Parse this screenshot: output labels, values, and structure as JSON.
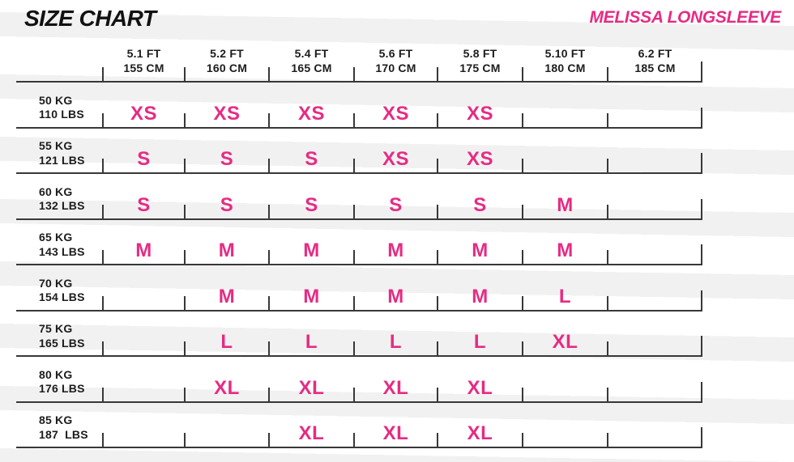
{
  "header": {
    "title": "SIZE CHART",
    "product": "MELISSA LONGSLEEVE"
  },
  "colors": {
    "accent_pink": "#e62b83",
    "line": "#383838",
    "stripe": "#f1f1f1",
    "text": "#1c1c1c"
  },
  "chart_data": {
    "type": "table",
    "title": "SIZE CHART",
    "subtitle": "MELISSA LONGSLEEVE",
    "legend_position": "none",
    "grid": "ruler-style row lines with column ticks",
    "columns": [
      {
        "ft": "5.1 FT",
        "cm": "155 CM"
      },
      {
        "ft": "5.2 FT",
        "cm": "160 CM"
      },
      {
        "ft": "5.4 FT",
        "cm": "165 CM"
      },
      {
        "ft": "5.6 FT",
        "cm": "170 CM"
      },
      {
        "ft": "5.8 FT",
        "cm": "175 CM"
      },
      {
        "ft": "5.10 FT",
        "cm": "180 CM"
      },
      {
        "ft": "6.2 FT",
        "cm": "185 CM"
      }
    ],
    "rows": [
      {
        "kg": "50 KG",
        "lbs": "110 LBS",
        "sizes": [
          "XS",
          "XS",
          "XS",
          "XS",
          "XS",
          "",
          ""
        ]
      },
      {
        "kg": "55 KG",
        "lbs": "121 LBS",
        "sizes": [
          "S",
          "S",
          "S",
          "XS",
          "XS",
          "",
          ""
        ]
      },
      {
        "kg": "60 KG",
        "lbs": "132 LBS",
        "sizes": [
          "S",
          "S",
          "S",
          "S",
          "S",
          "M",
          ""
        ]
      },
      {
        "kg": "65 KG",
        "lbs": "143 LBS",
        "sizes": [
          "M",
          "M",
          "M",
          "M",
          "M",
          "M",
          ""
        ]
      },
      {
        "kg": "70 KG",
        "lbs": "154 LBS",
        "sizes": [
          "",
          "M",
          "M",
          "M",
          "M",
          "L",
          ""
        ]
      },
      {
        "kg": "75 KG",
        "lbs": "165 LBS",
        "sizes": [
          "",
          "L",
          "L",
          "L",
          "L",
          "XL",
          ""
        ]
      },
      {
        "kg": "80 KG",
        "lbs": "176 LBS",
        "sizes": [
          "",
          "XL",
          "XL",
          "XL",
          "XL",
          "",
          ""
        ]
      },
      {
        "kg": "85 KG",
        "lbs": "187  LBS",
        "sizes": [
          "",
          "",
          "XL",
          "XL",
          "XL",
          "",
          ""
        ]
      }
    ]
  }
}
